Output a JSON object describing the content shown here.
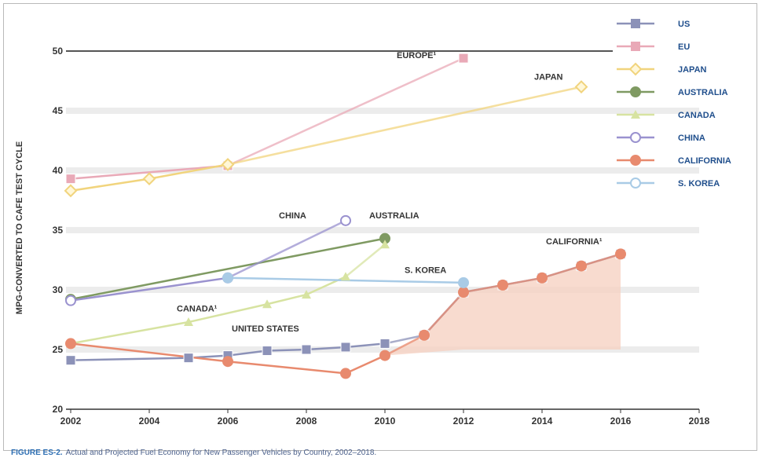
{
  "caption": {
    "figure_label": "FIGURE ES-2.",
    "text": "Actual and Projected Fuel Economy for New Passenger Vehicles by Country, 2002–2018."
  },
  "chart_data": {
    "type": "line",
    "title": "",
    "xlabel": "",
    "ylabel": "MPG-CONVERTED TO CAFE TEST CYCLE",
    "xlim": [
      2002,
      2018
    ],
    "ylim": [
      20,
      50
    ],
    "xticks": [
      2002,
      2004,
      2006,
      2008,
      2010,
      2012,
      2014,
      2016,
      2018
    ],
    "yticks": [
      20,
      25,
      30,
      35,
      40,
      45,
      50
    ],
    "grid": "horizontal",
    "legend_position": "right",
    "series": [
      {
        "name": "US",
        "color": "#8c92b8",
        "marker": "square",
        "points": [
          [
            2002,
            24.1
          ],
          [
            2005,
            24.3
          ],
          [
            2006,
            24.5
          ],
          [
            2007,
            24.9
          ],
          [
            2008,
            25.0
          ],
          [
            2009,
            25.2
          ],
          [
            2010,
            25.5
          ]
        ],
        "projected": [
          [
            2010,
            25.5
          ],
          [
            2011,
            26.2
          ],
          [
            2012,
            29.8
          ],
          [
            2013,
            30.4
          ],
          [
            2014,
            31.0
          ],
          [
            2015,
            32.0
          ],
          [
            2016,
            33.0
          ]
        ]
      },
      {
        "name": "EU",
        "color": "#e9a9b7",
        "marker": "square",
        "points": [
          [
            2002,
            39.3
          ],
          [
            2006,
            40.4
          ]
        ],
        "projected": [
          [
            2006,
            40.4
          ],
          [
            2012,
            49.4
          ]
        ]
      },
      {
        "name": "JAPAN",
        "color": "#f1d47d",
        "marker": "diamond",
        "points": [
          [
            2002,
            38.3
          ],
          [
            2004,
            39.3
          ],
          [
            2006,
            40.5
          ]
        ],
        "projected": [
          [
            2006,
            40.5
          ],
          [
            2015,
            47.0
          ]
        ]
      },
      {
        "name": "AUSTRALIA",
        "color": "#7f9a62",
        "marker": "circle",
        "points": [
          [
            2002,
            29.2
          ],
          [
            2010,
            34.3
          ]
        ],
        "projected": []
      },
      {
        "name": "CANADA",
        "color": "#d7e3a1",
        "marker": "triangle",
        "points": [
          [
            2002,
            25.5
          ],
          [
            2005,
            27.3
          ],
          [
            2007,
            28.8
          ],
          [
            2008,
            29.6
          ],
          [
            2009,
            31.1
          ]
        ],
        "projected": [
          [
            2009,
            31.1
          ],
          [
            2010,
            33.8
          ]
        ]
      },
      {
        "name": "CHINA",
        "color": "#9a92cf",
        "marker": "circle",
        "points": [
          [
            2002,
            29.1
          ],
          [
            2006,
            31.0
          ]
        ],
        "projected": [
          [
            2006,
            31.0
          ],
          [
            2009,
            35.8
          ]
        ]
      },
      {
        "name": "CALIFORNIA",
        "color": "#e88a6e",
        "marker": "circle",
        "points": [
          [
            2002,
            25.5
          ],
          [
            2006,
            24.0
          ],
          [
            2009,
            23.0
          ],
          [
            2010,
            24.5
          ]
        ],
        "projected": [
          [
            2010,
            24.5
          ],
          [
            2011,
            26.2
          ],
          [
            2012,
            29.8
          ],
          [
            2013,
            30.4
          ],
          [
            2014,
            31.0
          ],
          [
            2015,
            32.0
          ],
          [
            2016,
            33.0
          ]
        ]
      },
      {
        "name": "S. KOREA",
        "color": "#a9cbe6",
        "marker": "circle",
        "points": [
          [
            2006,
            31.0
          ],
          [
            2012,
            30.6
          ]
        ],
        "projected": []
      }
    ],
    "annotations": [
      {
        "text": "EUROPE¹",
        "x": 2010.3,
        "y": 49.4,
        "style": "dark"
      },
      {
        "text": "JAPAN",
        "x": 2013.8,
        "y": 47.6,
        "style": "dark"
      },
      {
        "text": "CHINA",
        "x": 2007.3,
        "y": 36.0,
        "style": "dark"
      },
      {
        "text": "AUSTRALIA",
        "x": 2009.6,
        "y": 36.0,
        "style": "dark"
      },
      {
        "text": "S. KOREA",
        "x": 2010.5,
        "y": 31.4,
        "style": "dark"
      },
      {
        "text": "CALIFORNIA¹",
        "x": 2014.1,
        "y": 33.8,
        "style": "dark"
      },
      {
        "text": "CANADA¹",
        "x": 2004.7,
        "y": 28.2,
        "style": "dark"
      },
      {
        "text": "UNITED STATES",
        "x": 2006.1,
        "y": 26.5,
        "style": "dark"
      }
    ]
  }
}
